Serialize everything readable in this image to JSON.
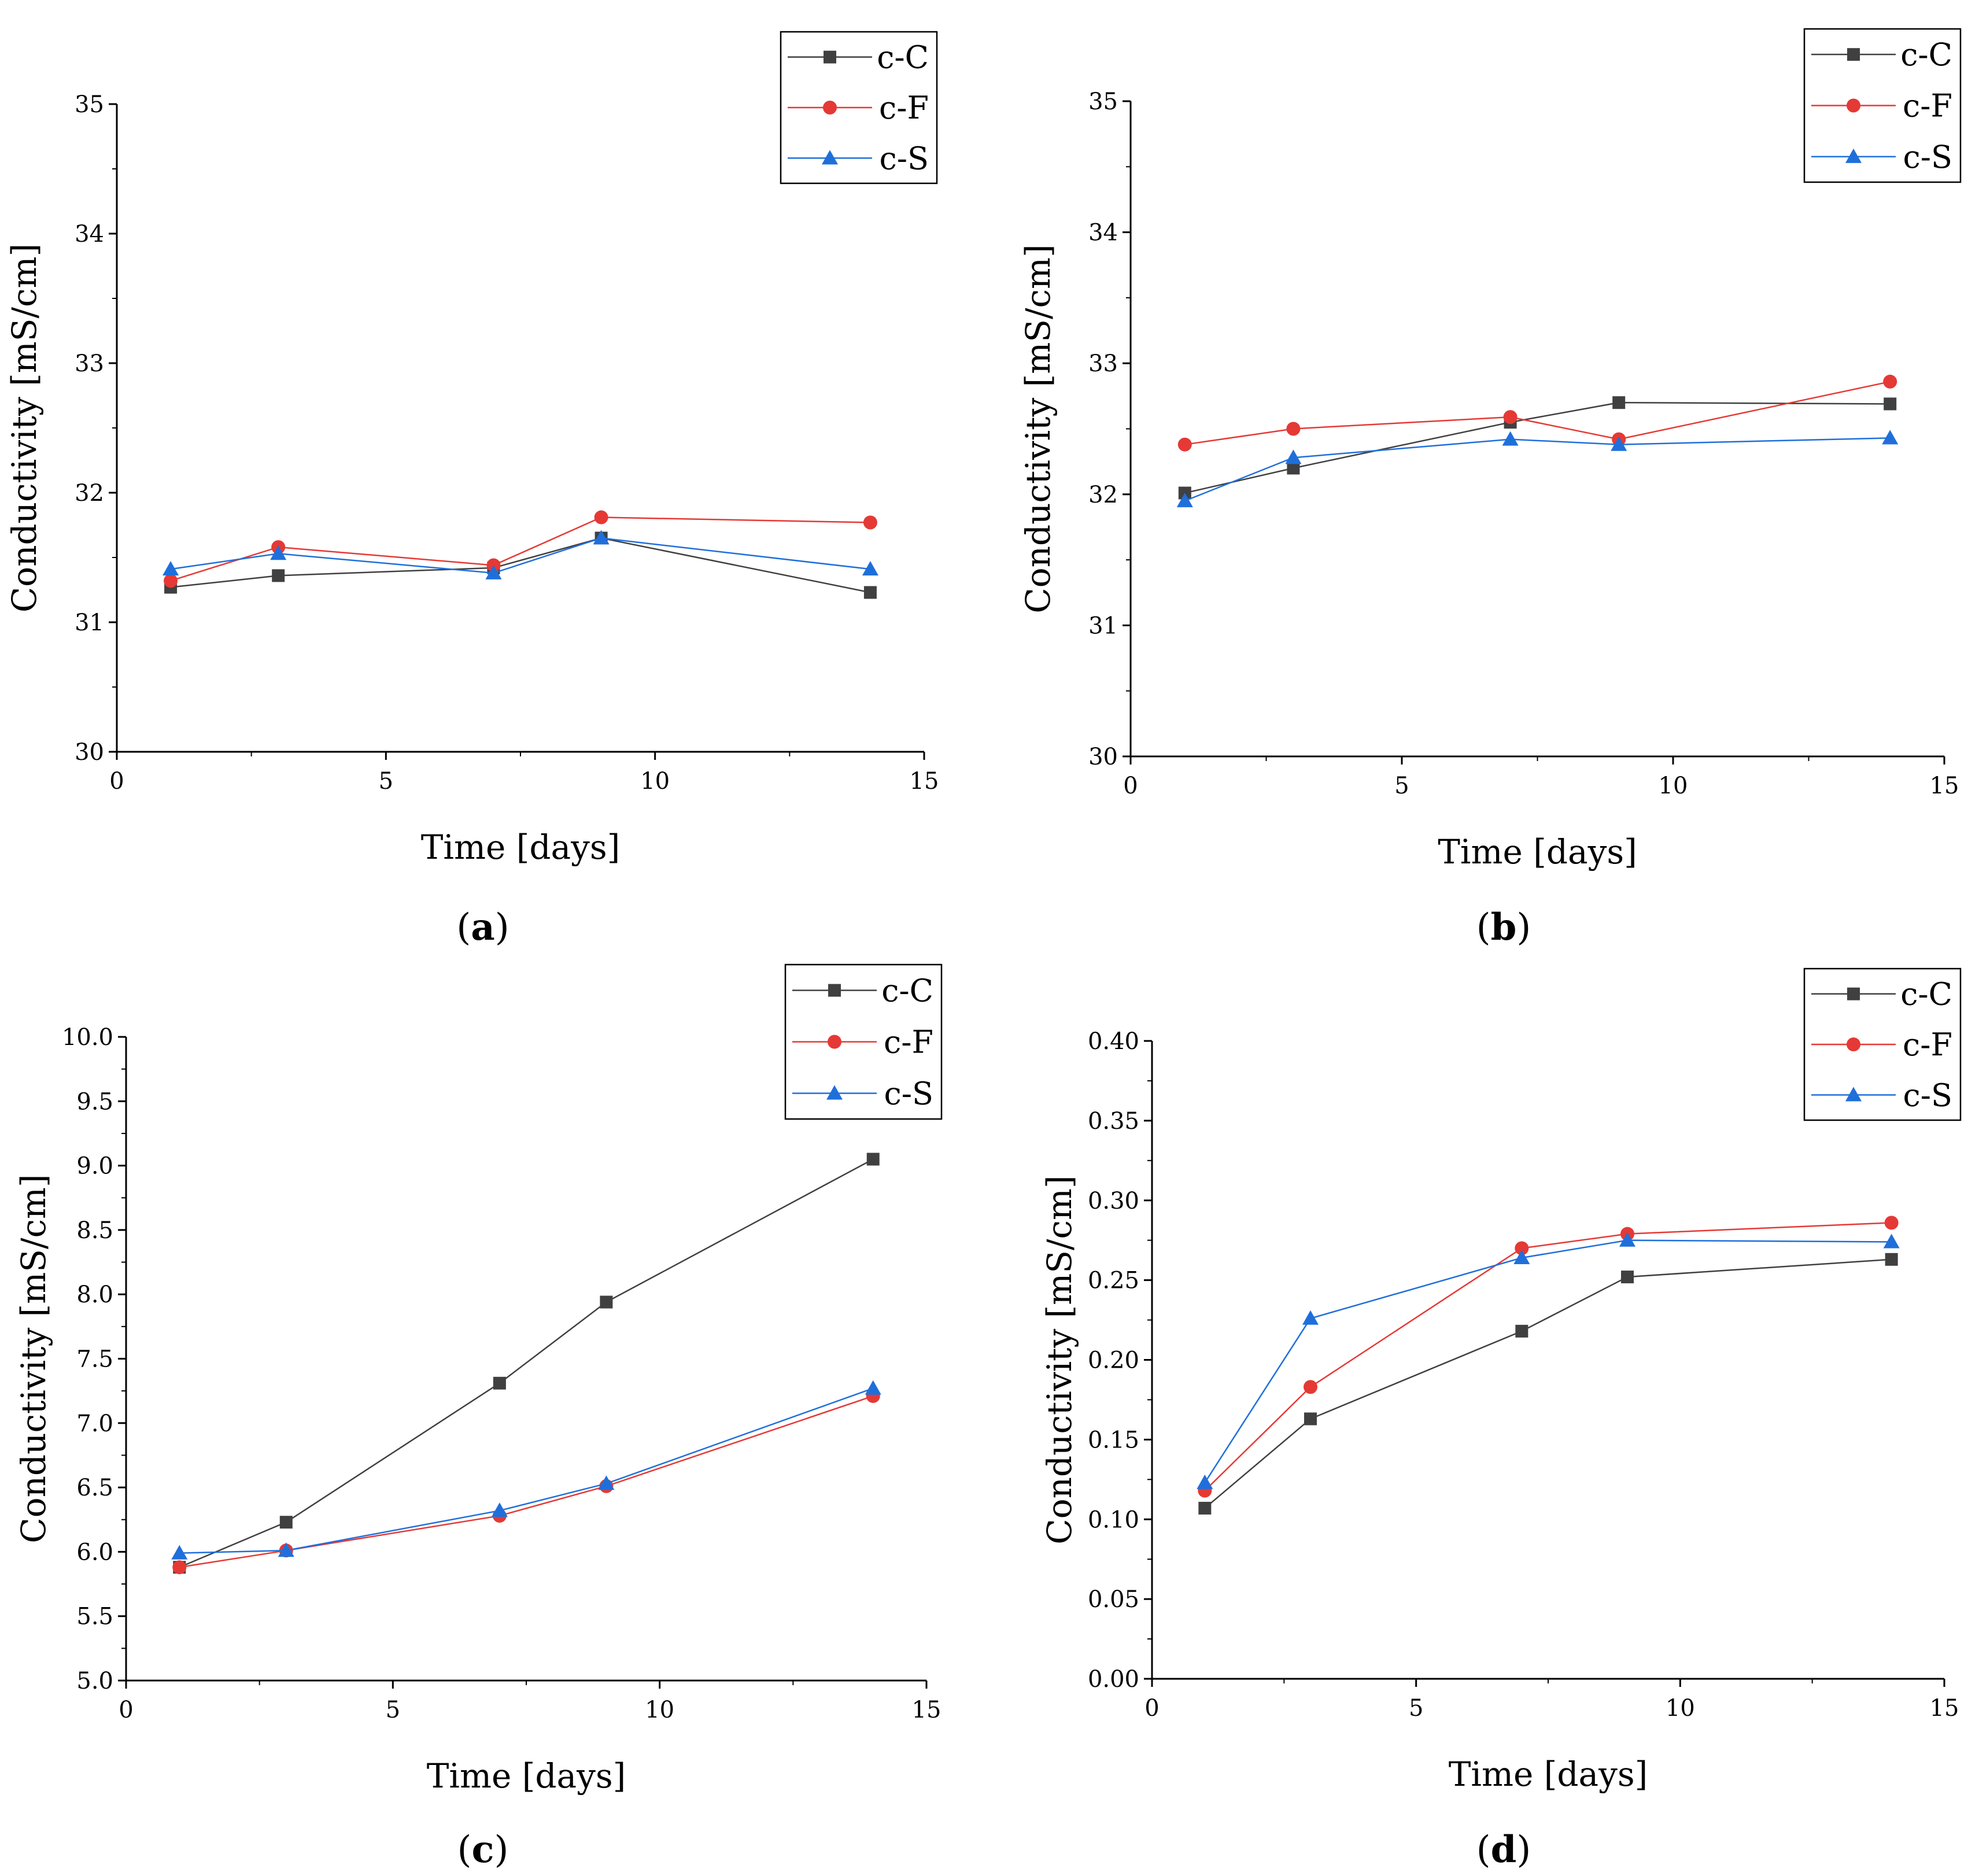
{
  "chart_data": [
    {
      "type": "line",
      "panel_label": "a",
      "xlabel": "Time [days]",
      "ylabel": "Conductivity [mS/cm]",
      "xlim": [
        0,
        15
      ],
      "ylim": [
        30,
        35
      ],
      "xticks": [
        "0",
        "5",
        "10",
        "15"
      ],
      "yticks": [
        "30",
        "31",
        "32",
        "33",
        "34",
        "35"
      ],
      "legend_position": "top-right",
      "x": [
        1,
        3,
        7,
        9,
        14
      ],
      "series": [
        {
          "name": "c-C",
          "color": "#404040",
          "marker": "square",
          "values": [
            31.27,
            31.36,
            31.42,
            31.65,
            31.23
          ]
        },
        {
          "name": "c-F",
          "color": "#e53935",
          "marker": "circle",
          "values": [
            31.32,
            31.58,
            31.44,
            31.81,
            31.77
          ]
        },
        {
          "name": "c-S",
          "color": "#1f6fdb",
          "marker": "triangle",
          "values": [
            31.41,
            31.53,
            31.38,
            31.65,
            31.41
          ]
        }
      ]
    },
    {
      "type": "line",
      "panel_label": "b",
      "xlabel": "Time [days]",
      "ylabel": "Conductivity [mS/cm]",
      "xlim": [
        0,
        15
      ],
      "ylim": [
        30,
        35
      ],
      "xticks": [
        "0",
        "5",
        "10",
        "15"
      ],
      "yticks": [
        "30",
        "31",
        "32",
        "33",
        "34",
        "35"
      ],
      "legend_position": "top-right",
      "x": [
        1,
        3,
        7,
        9,
        14
      ],
      "series": [
        {
          "name": "c-C",
          "color": "#404040",
          "marker": "square",
          "values": [
            32.01,
            32.2,
            32.55,
            32.7,
            32.69
          ]
        },
        {
          "name": "c-F",
          "color": "#e53935",
          "marker": "circle",
          "values": [
            32.38,
            32.5,
            32.59,
            32.42,
            32.86
          ]
        },
        {
          "name": "c-S",
          "color": "#1f6fdb",
          "marker": "triangle",
          "values": [
            31.95,
            32.28,
            32.42,
            32.38,
            32.43
          ]
        }
      ]
    },
    {
      "type": "line",
      "panel_label": "c",
      "xlabel": "Time [days]",
      "ylabel": "Conductivity [mS/cm]",
      "xlim": [
        0,
        15
      ],
      "ylim": [
        5.0,
        10.0
      ],
      "xticks": [
        "0",
        "5",
        "10",
        "15"
      ],
      "yticks": [
        "5.0",
        "5.5",
        "6.0",
        "6.5",
        "7.0",
        "7.5",
        "8.0",
        "8.5",
        "9.0",
        "9.5",
        "10.0"
      ],
      "legend_position": "top-right",
      "x": [
        1,
        3,
        7,
        9,
        14
      ],
      "series": [
        {
          "name": "c-C",
          "color": "#404040",
          "marker": "square",
          "values": [
            5.88,
            6.23,
            7.31,
            7.94,
            9.05
          ]
        },
        {
          "name": "c-F",
          "color": "#e53935",
          "marker": "circle",
          "values": [
            5.88,
            6.01,
            6.28,
            6.51,
            7.21
          ]
        },
        {
          "name": "c-S",
          "color": "#1f6fdb",
          "marker": "triangle",
          "values": [
            5.99,
            6.01,
            6.32,
            6.53,
            7.27
          ]
        }
      ]
    },
    {
      "type": "line",
      "panel_label": "d",
      "xlabel": "Time [days]",
      "ylabel": "Conductivity [mS/cm]",
      "xlim": [
        0,
        15
      ],
      "ylim": [
        0.0,
        0.4
      ],
      "xticks": [
        "0",
        "5",
        "10",
        "15"
      ],
      "yticks": [
        "0.00",
        "0.05",
        "0.10",
        "0.15",
        "0.20",
        "0.25",
        "0.30",
        "0.35",
        "0.40"
      ],
      "legend_position": "top-right",
      "x": [
        1,
        3,
        7,
        9,
        14
      ],
      "series": [
        {
          "name": "c-C",
          "color": "#404040",
          "marker": "square",
          "values": [
            0.107,
            0.163,
            0.218,
            0.252,
            0.263
          ]
        },
        {
          "name": "c-F",
          "color": "#e53935",
          "marker": "circle",
          "values": [
            0.118,
            0.183,
            0.27,
            0.279,
            0.286
          ]
        },
        {
          "name": "c-S",
          "color": "#1f6fdb",
          "marker": "triangle",
          "values": [
            0.123,
            0.226,
            0.264,
            0.275,
            0.274
          ]
        }
      ]
    }
  ]
}
